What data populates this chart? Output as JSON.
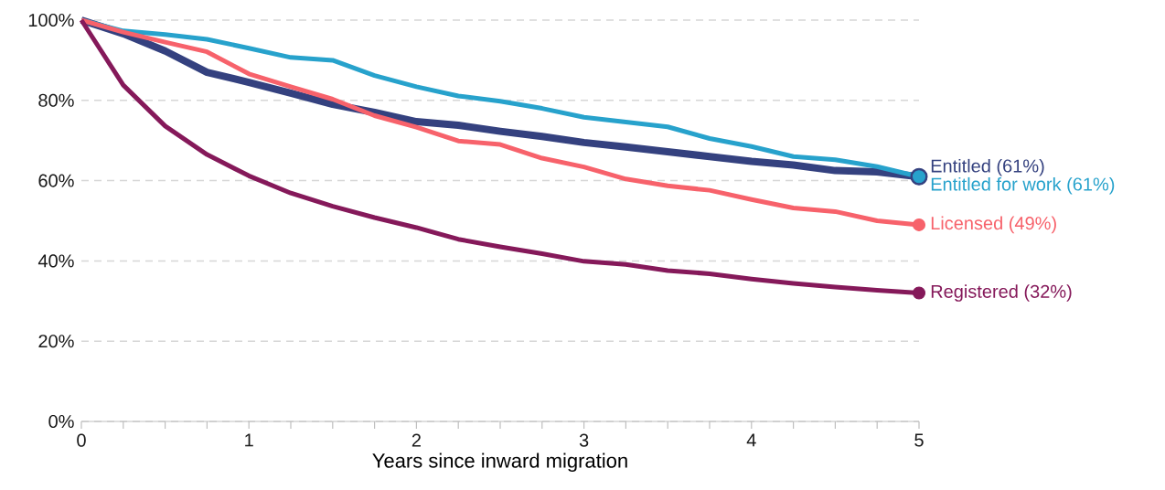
{
  "chart_data": {
    "type": "line",
    "xlabel": "Years since inward migration",
    "x": [
      0,
      0.25,
      0.5,
      0.75,
      1,
      1.25,
      1.5,
      1.75,
      2,
      2.25,
      2.5,
      2.75,
      3,
      3.25,
      3.5,
      3.75,
      4,
      4.25,
      4.5,
      4.75,
      5
    ],
    "series": [
      {
        "name": "Entitled (61%)",
        "color": "#34417f",
        "values": [
          100,
          96.6,
          92.3,
          87,
          84.5,
          81.8,
          79,
          77,
          74.7,
          73.8,
          72.3,
          71,
          69.5,
          68.4,
          67.2,
          66,
          64.8,
          63.9,
          62.5,
          62.2,
          61
        ]
      },
      {
        "name": "Entitled for work (61%)",
        "color": "#27a2cc",
        "values": [
          100,
          97.3,
          96.4,
          95.2,
          93,
          90.7,
          90,
          86.2,
          83.4,
          81.1,
          79.8,
          78,
          75.8,
          74.6,
          73.4,
          70.5,
          68.5,
          66,
          65.2,
          63.5,
          61
        ]
      },
      {
        "name": "Licensed (49%)",
        "color": "#f7626b",
        "values": [
          100,
          97,
          94.5,
          92.1,
          86.6,
          83.4,
          80.3,
          76.2,
          73.3,
          69.9,
          69,
          65.6,
          63.4,
          60.4,
          58.7,
          57.6,
          55.3,
          53.2,
          52.3,
          50,
          49
        ]
      },
      {
        "name": "Registered (32%)",
        "color": "#85195a",
        "values": [
          100,
          83.8,
          73.6,
          66.5,
          61.2,
          56.9,
          53.6,
          50.8,
          48.3,
          45.4,
          43.5,
          41.8,
          39.9,
          39.1,
          37.6,
          36.8,
          35.5,
          34.4,
          33.5,
          32.7,
          32
        ]
      }
    ],
    "xlim": [
      0,
      5
    ],
    "xticks": [
      0,
      1,
      2,
      3,
      4,
      5
    ],
    "ylim": [
      0,
      100
    ],
    "yticks": [
      {
        "value": 0,
        "label": "0%"
      },
      {
        "value": 20,
        "label": "20%"
      },
      {
        "value": 40,
        "label": "40%"
      },
      {
        "value": 60,
        "label": "60%"
      },
      {
        "value": 80,
        "label": "80%"
      },
      {
        "value": 100,
        "label": "100%"
      }
    ],
    "grid": "y"
  }
}
